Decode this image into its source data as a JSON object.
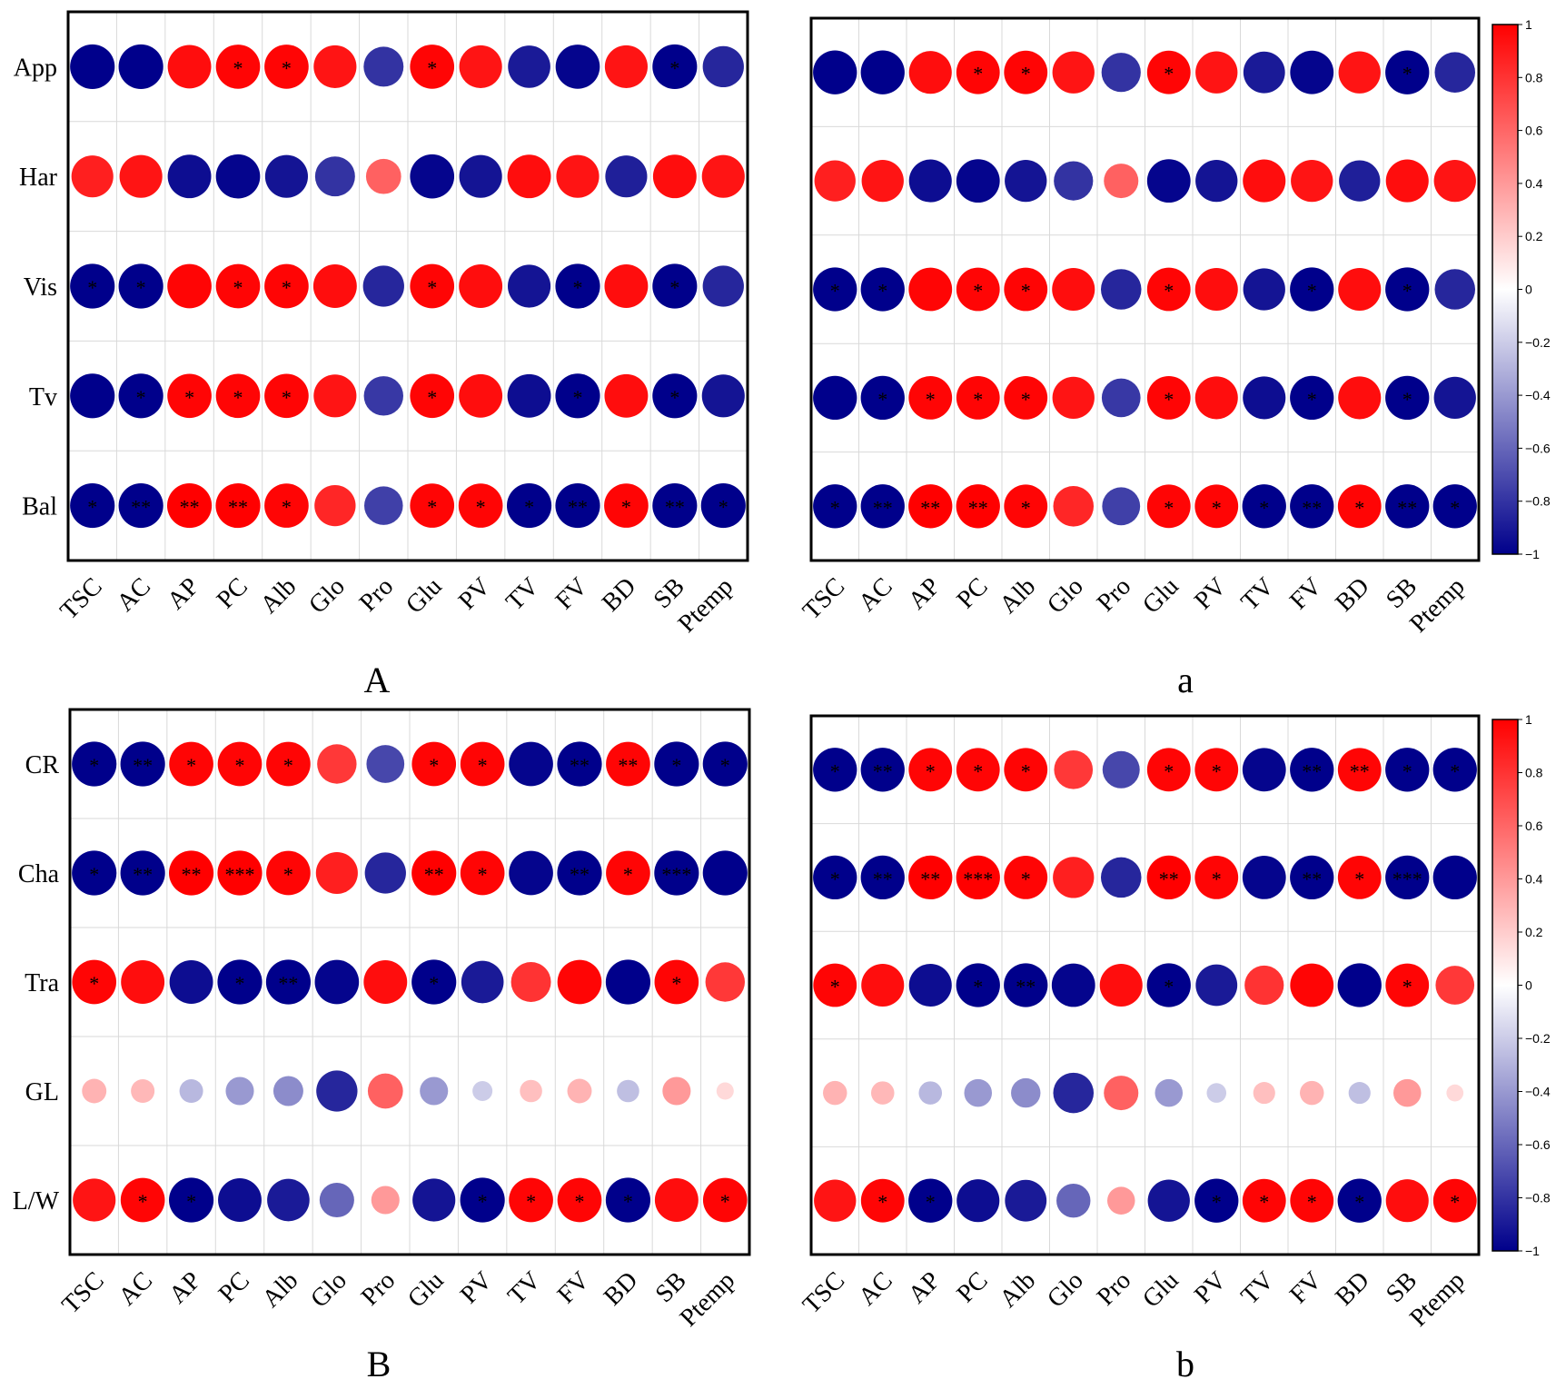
{
  "chart_data": [
    {
      "type": "heatmap",
      "panel_label": "A",
      "rows": [
        "App",
        "Har",
        "Vis",
        "Tv",
        "Bal"
      ],
      "columns": [
        "TSC",
        "AC",
        "AP",
        "PC",
        "Alb",
        "Glo",
        "Pro",
        "Glu",
        "PV",
        "TV",
        "FV",
        "BD",
        "SB",
        "Ptemp"
      ],
      "values": [
        [
          -1.0,
          -1.0,
          0.95,
          0.98,
          0.98,
          0.92,
          -0.8,
          0.98,
          0.92,
          -0.9,
          -0.98,
          0.92,
          -1.0,
          -0.85
        ],
        [
          0.88,
          0.92,
          -0.95,
          -0.98,
          -0.92,
          -0.8,
          0.62,
          -0.98,
          -0.92,
          0.95,
          0.92,
          -0.88,
          0.95,
          0.92
        ],
        [
          -1.0,
          -1.0,
          0.98,
          0.98,
          0.98,
          0.95,
          -0.85,
          0.98,
          0.95,
          -0.92,
          -1.0,
          0.95,
          -1.0,
          -0.85
        ],
        [
          -1.0,
          -1.0,
          0.98,
          0.98,
          0.98,
          0.92,
          -0.78,
          0.98,
          0.95,
          -0.95,
          -1.0,
          0.95,
          -1.0,
          -0.92
        ],
        [
          -1.0,
          -1.0,
          1.0,
          1.0,
          0.98,
          0.85,
          -0.75,
          0.98,
          0.98,
          -1.0,
          -1.0,
          0.98,
          -1.0,
          -1.0
        ]
      ],
      "significance": [
        [
          "",
          "",
          "",
          "*",
          "*",
          "",
          "",
          "*",
          "",
          "",
          "",
          "",
          "*",
          ""
        ],
        [
          "",
          "",
          "",
          "",
          "",
          "",
          "",
          "",
          "",
          "",
          "",
          "",
          "",
          ""
        ],
        [
          "*",
          "*",
          "",
          "*",
          "*",
          "",
          "",
          "*",
          "",
          "",
          "*",
          "",
          "*",
          ""
        ],
        [
          "",
          "*",
          "*",
          "*",
          "*",
          "",
          "",
          "*",
          "",
          "",
          "*",
          "",
          "*",
          ""
        ],
        [
          "*",
          "**",
          "**",
          "**",
          "*",
          "",
          "",
          "*",
          "*",
          "*",
          "**",
          "*",
          "**",
          "*"
        ]
      ],
      "show_colorbar": false
    },
    {
      "type": "heatmap",
      "panel_label": "a",
      "rows": [
        "App",
        "Har",
        "Vis",
        "Tv",
        "Bal"
      ],
      "columns": [
        "TSC",
        "AC",
        "AP",
        "PC",
        "Alb",
        "Glo",
        "Pro",
        "Glu",
        "PV",
        "TV",
        "FV",
        "BD",
        "SB",
        "Ptemp"
      ],
      "values": [
        [
          -1.0,
          -1.0,
          0.95,
          0.98,
          0.98,
          0.92,
          -0.8,
          0.98,
          0.92,
          -0.9,
          -0.98,
          0.92,
          -1.0,
          -0.85
        ],
        [
          0.88,
          0.92,
          -0.95,
          -0.98,
          -0.92,
          -0.8,
          0.62,
          -0.98,
          -0.92,
          0.95,
          0.92,
          -0.88,
          0.95,
          0.92
        ],
        [
          -1.0,
          -1.0,
          0.98,
          0.98,
          0.98,
          0.95,
          -0.85,
          0.98,
          0.95,
          -0.92,
          -1.0,
          0.95,
          -1.0,
          -0.85
        ],
        [
          -1.0,
          -1.0,
          0.98,
          0.98,
          0.98,
          0.92,
          -0.78,
          0.98,
          0.95,
          -0.95,
          -1.0,
          0.95,
          -1.0,
          -0.92
        ],
        [
          -1.0,
          -1.0,
          1.0,
          1.0,
          0.98,
          0.85,
          -0.75,
          0.98,
          0.98,
          -1.0,
          -1.0,
          0.98,
          -1.0,
          -1.0
        ]
      ],
      "significance": [
        [
          "",
          "",
          "",
          "*",
          "*",
          "",
          "",
          "*",
          "",
          "",
          "",
          "",
          "*",
          ""
        ],
        [
          "",
          "",
          "",
          "",
          "",
          "",
          "",
          "",
          "",
          "",
          "",
          "",
          "",
          ""
        ],
        [
          "*",
          "*",
          "",
          "*",
          "*",
          "",
          "",
          "*",
          "",
          "",
          "*",
          "",
          "*",
          ""
        ],
        [
          "",
          "*",
          "*",
          "*",
          "*",
          "",
          "",
          "*",
          "",
          "",
          "*",
          "",
          "*",
          ""
        ],
        [
          "*",
          "**",
          "**",
          "**",
          "*",
          "",
          "",
          "*",
          "*",
          "*",
          "**",
          "*",
          "**",
          "*"
        ]
      ],
      "show_colorbar": true,
      "colorbar": {
        "range": [
          -1,
          1
        ],
        "tick_labels": [
          "1",
          "0.8",
          "0.6",
          "0.4",
          "0.2",
          "0",
          "−0.2",
          "−0.4",
          "−0.6",
          "−0.8",
          "−1"
        ],
        "tick_values": [
          1,
          0.8,
          0.6,
          0.4,
          0.2,
          0,
          -0.2,
          -0.4,
          -0.6,
          -0.8,
          -1
        ]
      }
    },
    {
      "type": "heatmap",
      "panel_label": "B",
      "rows": [
        "CR",
        "Cha",
        "Tra",
        "GL",
        "L/W"
      ],
      "columns": [
        "TSC",
        "AC",
        "AP",
        "PC",
        "Alb",
        "Glo",
        "Pro",
        "Glu",
        "PV",
        "TV",
        "FV",
        "BD",
        "SB",
        "Ptemp"
      ],
      "values": [
        [
          -1.0,
          -1.0,
          0.98,
          0.98,
          0.98,
          0.78,
          -0.72,
          0.98,
          0.98,
          -0.98,
          -1.0,
          0.98,
          -1.0,
          -1.0
        ],
        [
          -1.0,
          -1.0,
          1.0,
          1.0,
          0.98,
          0.88,
          -0.85,
          1.0,
          0.98,
          -0.98,
          -1.0,
          0.98,
          -1.0,
          -1.0
        ],
        [
          0.98,
          0.95,
          -0.95,
          -1.0,
          -1.0,
          -0.98,
          0.95,
          -1.0,
          -0.9,
          0.8,
          0.98,
          -1.0,
          0.98,
          0.78
        ],
        [
          0.3,
          0.28,
          -0.28,
          -0.4,
          -0.45,
          -0.85,
          0.62,
          -0.4,
          -0.2,
          0.25,
          0.3,
          -0.25,
          0.4,
          0.15
        ],
        [
          0.92,
          0.98,
          -1.0,
          -0.95,
          -0.9,
          -0.6,
          0.4,
          -0.92,
          -1.0,
          0.98,
          0.98,
          -1.0,
          0.95,
          0.98
        ]
      ],
      "significance": [
        [
          "*",
          "**",
          "*",
          "*",
          "*",
          "",
          "",
          "*",
          "*",
          "",
          "**",
          "**",
          "*",
          "*"
        ],
        [
          "*",
          "**",
          "**",
          "***",
          "*",
          "",
          "",
          "**",
          "*",
          "",
          "**",
          "*",
          "***",
          ""
        ],
        [
          "*",
          "",
          "",
          "*",
          "**",
          "",
          "",
          "*",
          "",
          "",
          "",
          "",
          "*",
          ""
        ],
        [
          "",
          "",
          "",
          "",
          "",
          "",
          "",
          "",
          "",
          "",
          "",
          "",
          "",
          ""
        ],
        [
          "",
          "*",
          "*",
          "",
          "",
          "",
          "",
          "",
          "*",
          "*",
          "*",
          "*",
          "",
          "*"
        ]
      ],
      "show_colorbar": false
    },
    {
      "type": "heatmap",
      "panel_label": "b",
      "rows": [
        "CR",
        "Cha",
        "Tra",
        "GL",
        "L/W"
      ],
      "columns": [
        "TSC",
        "AC",
        "AP",
        "PC",
        "Alb",
        "Glo",
        "Pro",
        "Glu",
        "PV",
        "TV",
        "FV",
        "BD",
        "SB",
        "Ptemp"
      ],
      "values": [
        [
          -1.0,
          -1.0,
          0.98,
          0.98,
          0.98,
          0.78,
          -0.72,
          0.98,
          0.98,
          -0.98,
          -1.0,
          0.98,
          -1.0,
          -1.0
        ],
        [
          -1.0,
          -1.0,
          1.0,
          1.0,
          0.98,
          0.88,
          -0.85,
          1.0,
          0.98,
          -0.98,
          -1.0,
          0.98,
          -1.0,
          -1.0
        ],
        [
          0.98,
          0.95,
          -0.95,
          -1.0,
          -1.0,
          -0.98,
          0.95,
          -1.0,
          -0.9,
          0.8,
          0.98,
          -1.0,
          0.98,
          0.78
        ],
        [
          0.3,
          0.28,
          -0.28,
          -0.4,
          -0.45,
          -0.85,
          0.62,
          -0.4,
          -0.2,
          0.25,
          0.3,
          -0.25,
          0.4,
          0.15
        ],
        [
          0.92,
          0.98,
          -1.0,
          -0.95,
          -0.9,
          -0.6,
          0.4,
          -0.92,
          -1.0,
          0.98,
          0.98,
          -1.0,
          0.95,
          0.98
        ]
      ],
      "significance": [
        [
          "*",
          "**",
          "*",
          "*",
          "*",
          "",
          "",
          "*",
          "*",
          "",
          "**",
          "**",
          "*",
          "*"
        ],
        [
          "*",
          "**",
          "**",
          "***",
          "*",
          "",
          "",
          "**",
          "*",
          "",
          "**",
          "*",
          "***",
          ""
        ],
        [
          "*",
          "",
          "",
          "*",
          "**",
          "",
          "",
          "*",
          "",
          "",
          "",
          "",
          "*",
          ""
        ],
        [
          "",
          "",
          "",
          "",
          "",
          "",
          "",
          "",
          "",
          "",
          "",
          "",
          "",
          ""
        ],
        [
          "",
          "*",
          "*",
          "",
          "",
          "",
          "",
          "",
          "*",
          "*",
          "*",
          "*",
          "",
          "*"
        ]
      ],
      "show_colorbar": true,
      "colorbar": {
        "range": [
          -1,
          1
        ],
        "tick_labels": [
          "1",
          "0.8",
          "0.6",
          "0.4",
          "0.2",
          "0",
          "−0.2",
          "−0.4",
          "−0.6",
          "−0.8",
          "−1"
        ],
        "tick_values": [
          1,
          0.8,
          0.6,
          0.4,
          0.2,
          0,
          -0.2,
          -0.4,
          -0.6,
          -0.8,
          -1
        ]
      }
    }
  ],
  "colors": {
    "positive": "#ff0000",
    "negative": "#00008b",
    "neutral": "#ffffff",
    "grid": "#d9d9d9",
    "frame": "#000000"
  }
}
